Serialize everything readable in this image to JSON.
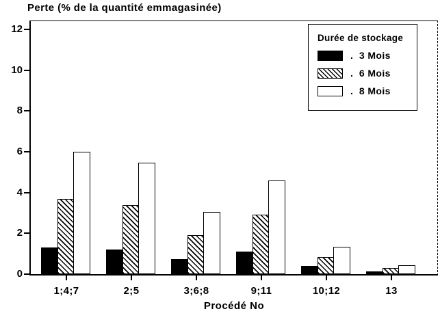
{
  "title": "Perte (% de la quantité emmagasinée)",
  "x_axis": {
    "title": "Procédé No"
  },
  "legend": {
    "title": "Durée de stockage",
    "separator": ".",
    "entries": [
      {
        "label": "3 Mois",
        "swatch": "solid-black"
      },
      {
        "label": "6 Mois",
        "swatch": "diagonal-hatch"
      },
      {
        "label": "8 Mois",
        "swatch": "white-outline"
      }
    ]
  },
  "colors": {
    "ink": "#000000",
    "paper": "#ffffff"
  },
  "chart_data": {
    "type": "bar",
    "title": "Perte (% de la quantité emmagasinée)",
    "xlabel": "Procédé No",
    "ylabel": "",
    "categories": [
      "1;4;7",
      "2;5",
      "3;6;8",
      "9;11",
      "10;12",
      "13"
    ],
    "series": [
      {
        "name": "3 Mois",
        "style": "solid-black",
        "values": [
          1.3,
          1.2,
          0.75,
          1.1,
          0.4,
          0.15
        ]
      },
      {
        "name": "6 Mois",
        "style": "diagonal-hatch",
        "values": [
          3.7,
          3.4,
          1.9,
          2.9,
          0.85,
          0.3
        ]
      },
      {
        "name": "8 Mois",
        "style": "white-outline",
        "values": [
          6.0,
          5.45,
          3.05,
          4.6,
          1.35,
          0.45
        ]
      }
    ],
    "ylim": [
      0,
      12.4
    ],
    "yticks": [
      0,
      2,
      4,
      6,
      8,
      10,
      12
    ],
    "grid": false,
    "legend_position": "upper-right"
  }
}
